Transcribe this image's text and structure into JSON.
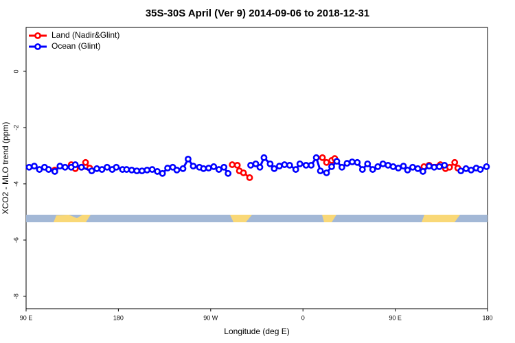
{
  "chart_data": {
    "type": "line",
    "title": "35S-30S April (Ver 9)   2014-09-06 to 2018-12-31",
    "xlabel": "Longitude (deg E)",
    "ylabel": "XCO2 - MLO trend (ppm)",
    "xlim": [
      90,
      540
    ],
    "xticks": [
      {
        "value": 90,
        "label": "90 E"
      },
      180,
      {
        "value": 270,
        "label": "90 W"
      },
      {
        "value": 360,
        "label": "0"
      },
      {
        "value": 450,
        "label": "90 E"
      },
      {
        "value": 540,
        "label": "180"
      }
    ],
    "ylim": [
      -8.44,
      1.56
    ],
    "yticks": [
      -8,
      -6,
      -4,
      -2,
      0
    ],
    "legend": "top-left",
    "series": [
      {
        "name": "Land (Nadir&Glint)",
        "color": "#ff0000",
        "x": [
          118,
          134,
          138,
          144,
          148,
          152,
          291,
          296,
          298,
          302,
          308,
          379,
          383,
          388,
          391,
          478,
          483,
          494,
          499,
          503,
          508,
          511
        ],
        "values": [
          -3.51,
          -3.32,
          -3.46,
          -3.41,
          -3.24,
          -3.44,
          -3.32,
          -3.34,
          -3.54,
          -3.61,
          -3.78,
          -3.07,
          -3.24,
          -3.17,
          -3.1,
          -3.39,
          -3.34,
          -3.32,
          -3.46,
          -3.41,
          -3.24,
          -3.44
        ]
      },
      {
        "name": "Ocean (Glint)",
        "color": "#0000ff",
        "x": [
          93,
          98,
          103,
          108,
          112,
          118,
          123,
          128,
          134,
          138,
          144,
          154,
          159,
          164,
          169,
          174,
          178,
          184,
          188,
          193,
          198,
          203,
          208,
          213,
          218,
          223,
          228,
          233,
          237,
          243,
          248,
          253,
          259,
          263,
          268,
          273,
          278,
          283,
          287,
          309,
          314,
          318,
          322,
          328,
          332,
          337,
          342,
          347,
          353,
          357,
          363,
          368,
          373,
          377,
          383,
          388,
          393,
          398,
          403,
          408,
          413,
          418,
          423,
          428,
          433,
          438,
          443,
          448,
          453,
          458,
          462,
          467,
          472,
          477,
          483,
          488,
          493,
          498,
          514,
          519,
          524,
          529,
          533,
          539
        ],
        "values": [
          -3.41,
          -3.37,
          -3.49,
          -3.41,
          -3.49,
          -3.56,
          -3.37,
          -3.41,
          -3.41,
          -3.32,
          -3.41,
          -3.54,
          -3.46,
          -3.49,
          -3.41,
          -3.49,
          -3.41,
          -3.49,
          -3.49,
          -3.51,
          -3.54,
          -3.54,
          -3.51,
          -3.49,
          -3.56,
          -3.63,
          -3.44,
          -3.41,
          -3.51,
          -3.46,
          -3.12,
          -3.37,
          -3.41,
          -3.46,
          -3.44,
          -3.39,
          -3.49,
          -3.41,
          -3.63,
          -3.34,
          -3.29,
          -3.41,
          -3.07,
          -3.29,
          -3.46,
          -3.37,
          -3.32,
          -3.34,
          -3.49,
          -3.29,
          -3.34,
          -3.34,
          -3.07,
          -3.54,
          -3.61,
          -3.39,
          -3.2,
          -3.41,
          -3.27,
          -3.22,
          -3.24,
          -3.49,
          -3.29,
          -3.49,
          -3.39,
          -3.29,
          -3.34,
          -3.39,
          -3.44,
          -3.37,
          -3.51,
          -3.41,
          -3.46,
          -3.56,
          -3.37,
          -3.41,
          -3.39,
          -3.34,
          -3.54,
          -3.46,
          -3.51,
          -3.44,
          -3.49,
          -3.39
        ]
      }
    ]
  }
}
